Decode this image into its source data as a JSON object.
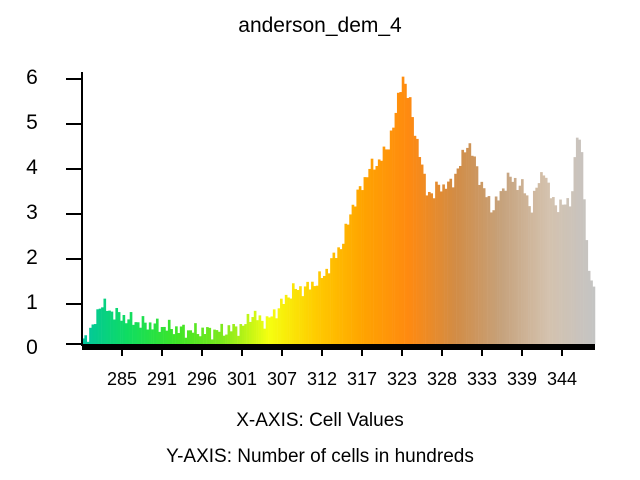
{
  "chart_data": {
    "type": "bar",
    "title": "anderson_dem_4",
    "xlabel": "X-AXIS: Cell Values",
    "ylabel": "Y-AXIS: Number of cells in hundreds",
    "x_tick_labels": [
      "285",
      "291",
      "296",
      "301",
      "307",
      "312",
      "317",
      "323",
      "328",
      "333",
      "339",
      "344"
    ],
    "y_tick_labels": [
      "0",
      "1",
      "2",
      "3",
      "4",
      "5",
      "6"
    ],
    "bin_count": 215,
    "grid": false,
    "profile_x_fraction": [
      0,
      0.02,
      0.035,
      0.06,
      0.09,
      0.12,
      0.15,
      0.2,
      0.25,
      0.28,
      0.3,
      0.315,
      0.33,
      0.345,
      0.36,
      0.38,
      0.41,
      0.44,
      0.47,
      0.48,
      0.495,
      0.51,
      0.525,
      0.545,
      0.56,
      0.575,
      0.585,
      0.595,
      0.6,
      0.61,
      0.625,
      0.64,
      0.655,
      0.67,
      0.685,
      0.695,
      0.705,
      0.72,
      0.735,
      0.75,
      0.765,
      0.78,
      0.8,
      0.815,
      0.83,
      0.845,
      0.86,
      0.875,
      0.89,
      0.9,
      0.91,
      0.93,
      0.945,
      0.955,
      0.965,
      0.975,
      0.985,
      0.995,
      1.0
    ],
    "profile_values": [
      0.1,
      0.3,
      0.9,
      0.7,
      0.55,
      0.45,
      0.4,
      0.3,
      0.28,
      0.3,
      0.36,
      0.38,
      0.68,
      0.55,
      0.5,
      0.75,
      1.2,
      1.25,
      1.5,
      1.7,
      2.0,
      2.3,
      3.0,
      3.5,
      3.9,
      4.0,
      4.2,
      4.3,
      4.6,
      5.0,
      6.0,
      5.3,
      4.4,
      3.5,
      3.25,
      3.6,
      3.45,
      3.6,
      3.9,
      4.5,
      4.1,
      3.5,
      3.0,
      3.3,
      3.7,
      3.6,
      3.5,
      3.0,
      3.6,
      3.9,
      3.4,
      3.0,
      3.2,
      3.2,
      4.7,
      4.3,
      1.8,
      1.4,
      1.1
    ],
    "color_stops": [
      "#00c5a0",
      "#10dd60",
      "#3de528",
      "#7ce81c",
      "#f5ff10",
      "#ffcc00",
      "#ffa400",
      "#ff8a10",
      "#d28c45",
      "#c6a27c",
      "#d4c2ae",
      "#c4c4c4"
    ]
  }
}
